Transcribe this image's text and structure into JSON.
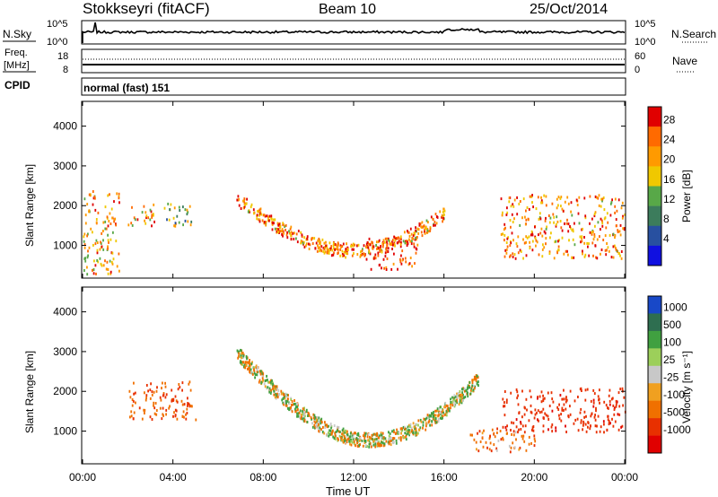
{
  "header": {
    "radar": "Stokkseyri (fitACF)",
    "beam": "Beam 10",
    "date": "25/Oct/2014"
  },
  "nsky_panel": {
    "left_label": "N.Sky",
    "left_ticks": [
      "10^5",
      "10^0"
    ],
    "right_ticks": [
      "10^5",
      "10^0"
    ],
    "right_label": "N.Search"
  },
  "freq_panel": {
    "label_line1": "Freq.",
    "label_line2": "[MHz]",
    "left_ticks": [
      "18",
      "8"
    ],
    "right_ticks": [
      "60",
      "0"
    ],
    "right_label": "Nave",
    "cpid_label": "CPID",
    "cpid_text": "normal (fast) 151"
  },
  "power_panel": {
    "ylabel": "Slant Range [km]",
    "yticks": [
      "4000",
      "3000",
      "2000",
      "1000"
    ],
    "colorbar_label": "Power [dB]",
    "colorbar_ticks": [
      "28",
      "24",
      "20",
      "16",
      "12",
      "8",
      "4"
    ],
    "colorbar_colors": [
      "#e00000",
      "#ff6a00",
      "#ff9a00",
      "#f0c800",
      "#58a848",
      "#3c7c5c",
      "#2850a0",
      "#1010e0"
    ]
  },
  "velocity_panel": {
    "ylabel": "Slant Range [km]",
    "yticks": [
      "4000",
      "3000",
      "2000",
      "1000"
    ],
    "colorbar_label": "Velocity [m s⁻¹]",
    "colorbar_ticks": [
      "1000",
      "500",
      "100",
      "25",
      "-25",
      "-100",
      "-500",
      "-1000"
    ],
    "colorbar_colors": [
      "#1848c8",
      "#2e6e50",
      "#40a040",
      "#9ccf5a",
      "#c8c8c8",
      "#f0a020",
      "#f07000",
      "#e83000",
      "#e00000"
    ]
  },
  "x_axis": {
    "ticks": [
      "00:00",
      "04:00",
      "08:00",
      "12:00",
      "16:00",
      "20:00",
      "00:00"
    ],
    "label": "Time UT"
  },
  "chart_data": [
    {
      "type": "heatmap",
      "title": "Stokkseyri (fitACF)  Beam 10  25/Oct/2014",
      "variable": "Power",
      "xlabel": "Time UT",
      "ylabel": "Slant Range [km]",
      "xlim_hours": [
        0,
        24
      ],
      "ylim_km": [
        200,
        4600
      ],
      "colorbar_range_db": [
        0,
        32
      ],
      "regions": [
        {
          "t_start": 0.0,
          "t_end": 1.6,
          "r_low": 300,
          "r_high": 2400,
          "dominant_db": 22
        },
        {
          "t_start": 2.0,
          "t_end": 3.2,
          "r_low": 1500,
          "r_high": 2100,
          "dominant_db": 22
        },
        {
          "t_start": 3.6,
          "t_end": 4.9,
          "r_low": 1500,
          "r_high": 2100,
          "dominant_db": 14
        },
        {
          "t_start": 6.8,
          "t_end": 16.0,
          "r_low": 900,
          "r_high": 2200,
          "dominant_db": 24,
          "note": "curved backscatter arc"
        },
        {
          "t_start": 12.5,
          "t_end": 14.8,
          "r_low": 400,
          "r_high": 1200,
          "dominant_db": 30
        },
        {
          "t_start": 18.5,
          "t_end": 24.0,
          "r_low": 700,
          "r_high": 2300,
          "dominant_db": 24
        }
      ]
    },
    {
      "type": "heatmap",
      "variable": "Velocity",
      "xlabel": "Time UT",
      "ylabel": "Slant Range [km]",
      "xlim_hours": [
        0,
        24
      ],
      "ylim_km": [
        200,
        4600
      ],
      "colorbar_range_ms": [
        -1000,
        1000
      ],
      "regions": [
        {
          "t_start": 2.0,
          "t_end": 5.0,
          "r_low": 1300,
          "r_high": 2300,
          "dominant_ms": -300
        },
        {
          "t_start": 6.8,
          "t_end": 17.5,
          "r_low": 800,
          "r_high": 3000,
          "dominant_ms": 0,
          "note": "ground scatter"
        },
        {
          "t_start": 17.0,
          "t_end": 20.0,
          "r_low": 500,
          "r_high": 1100,
          "dominant_ms": -200
        },
        {
          "t_start": 18.5,
          "t_end": 24.0,
          "r_low": 1000,
          "r_high": 2100,
          "dominant_ms": -600
        }
      ]
    }
  ]
}
